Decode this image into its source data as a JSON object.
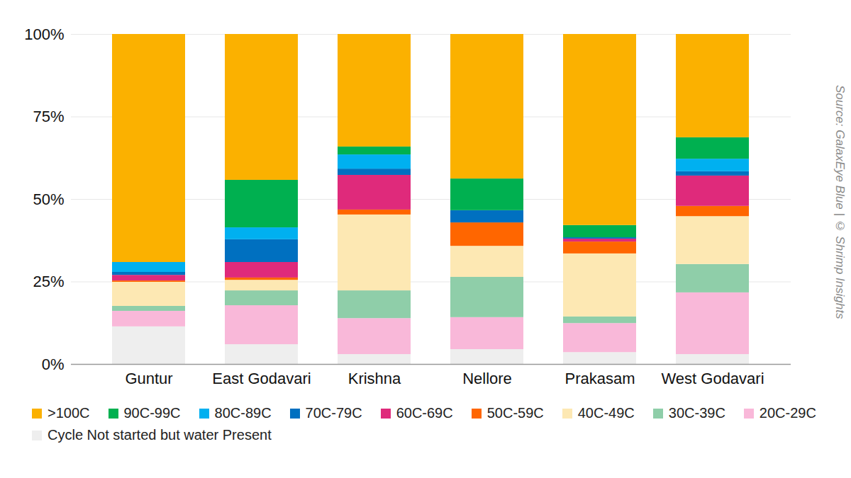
{
  "chart_data": {
    "type": "bar",
    "stacked": true,
    "grid": true,
    "legend": "bottom",
    "source": "Source: GalaxEye Blue | © Shrimp Insights",
    "categories": [
      "Guntur",
      "East Godavari",
      "Krishna",
      "Nellore",
      "Prakasam",
      "West Godavari"
    ],
    "ylim": [
      0,
      100
    ],
    "yticks": [
      {
        "value": 0,
        "label": "0%"
      },
      {
        "value": 25,
        "label": "25%"
      },
      {
        "value": 50,
        "label": "50%"
      },
      {
        "value": 75,
        "label": "75%"
      },
      {
        "value": 100,
        "label": "100%"
      }
    ],
    "series": [
      {
        "name": ">100C",
        "color": "#fbb100",
        "values": [
          69.1,
          44.2,
          34.1,
          43.8,
          57.9,
          31.3
        ]
      },
      {
        "name": "90C-99C",
        "color": "#00b050",
        "values": [
          0,
          14.4,
          2.4,
          9.6,
          3.7,
          6.5
        ]
      },
      {
        "name": "80C-89C",
        "color": "#00b0f0",
        "values": [
          3.0,
          3.6,
          4.3,
          0,
          0,
          3.8
        ]
      },
      {
        "name": "70C-79C",
        "color": "#0070c0",
        "values": [
          0.9,
          6.9,
          1.9,
          3.7,
          0.4,
          1.3
        ]
      },
      {
        "name": "60C-69C",
        "color": "#df2a7b",
        "values": [
          1.7,
          4.7,
          10.5,
          0,
          0.9,
          9.2
        ]
      },
      {
        "name": "50C-59C",
        "color": "#ff6600",
        "values": [
          0.4,
          0.7,
          1.5,
          7.1,
          3.6,
          3.1
        ]
      },
      {
        "name": "40C-49C",
        "color": "#fde8b3",
        "values": [
          7.3,
          3.2,
          23.0,
          9.4,
          19.1,
          14.5
        ]
      },
      {
        "name": "30C-39C",
        "color": "#8fcea9",
        "values": [
          1.5,
          4.5,
          8.4,
          12.2,
          2.0,
          8.6
        ]
      },
      {
        "name": "20C-29C",
        "color": "#f9b8d9",
        "values": [
          4.7,
          11.8,
          10.9,
          9.7,
          8.8,
          18.7
        ]
      },
      {
        "name": "Cycle Not started but water Present",
        "color": "#eeeeee",
        "values": [
          11.4,
          6.0,
          3.0,
          4.5,
          3.6,
          3.0
        ]
      }
    ]
  }
}
